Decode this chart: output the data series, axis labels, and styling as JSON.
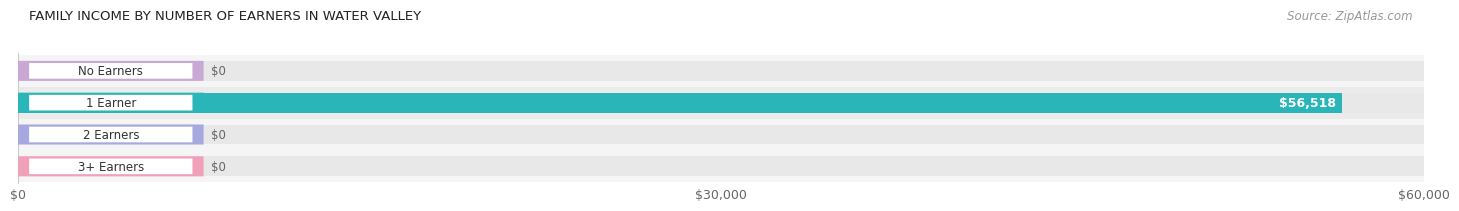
{
  "title": "FAMILY INCOME BY NUMBER OF EARNERS IN WATER VALLEY",
  "source": "Source: ZipAtlas.com",
  "categories": [
    "No Earners",
    "1 Earner",
    "2 Earners",
    "3+ Earners"
  ],
  "values": [
    0,
    56518,
    0,
    0
  ],
  "bar_colors": [
    "#c9a8d4",
    "#2ab5b8",
    "#a8a8e0",
    "#f0a0b8"
  ],
  "bar_bg_color": "#e8e8e8",
  "value_labels": [
    "$0",
    "$56,518",
    "$0",
    "$0"
  ],
  "xlim": [
    0,
    60000
  ],
  "xtick_values": [
    0,
    30000,
    60000
  ],
  "xtick_labels": [
    "$0",
    "$30,000",
    "$60,000"
  ],
  "bar_height": 0.62,
  "bg_color": "#ffffff",
  "row_bg_light": "#f5f5f5",
  "row_bg_dark": "#ebebeb"
}
